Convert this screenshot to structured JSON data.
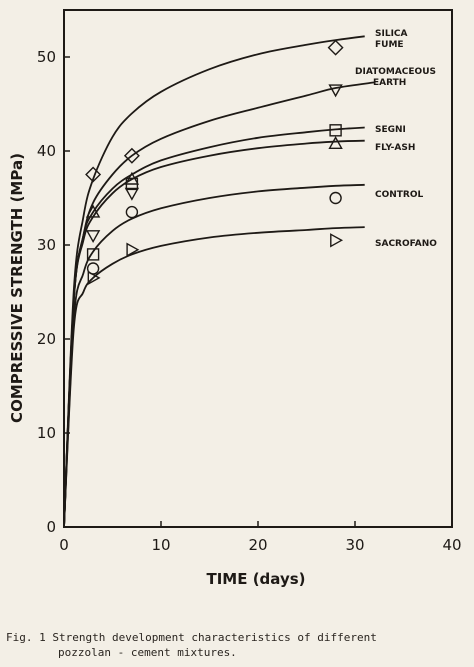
{
  "chart_data": {
    "type": "line",
    "xlabel": "TIME (days)",
    "ylabel": "COMPRESSIVE STRENGTH (MPa)",
    "xlim": [
      0,
      40
    ],
    "ylim": [
      0,
      55
    ],
    "xticks": [
      0,
      10,
      20,
      30,
      40
    ],
    "yticks": [
      0,
      10,
      20,
      30,
      40,
      50
    ],
    "grid": false,
    "series": [
      {
        "name": "SILICA FUME",
        "marker": "diamond",
        "points": [
          [
            3,
            37.5
          ],
          [
            7,
            39.5
          ],
          [
            28,
            51
          ]
        ],
        "curve": [
          [
            0,
            0
          ],
          [
            1,
            25
          ],
          [
            2,
            33
          ],
          [
            3,
            37
          ],
          [
            5,
            41.5
          ],
          [
            7,
            44
          ],
          [
            10,
            46.3
          ],
          [
            15,
            48.7
          ],
          [
            20,
            50.3
          ],
          [
            25,
            51.3
          ],
          [
            28,
            51.8
          ],
          [
            31,
            52.2
          ]
        ]
      },
      {
        "name": "DIATOMACEOUS EARTH",
        "marker": "triangle-down",
        "points": [
          [
            3,
            31
          ],
          [
            7,
            35.5
          ],
          [
            28,
            46.5
          ]
        ],
        "curve": [
          [
            0,
            0
          ],
          [
            1,
            24
          ],
          [
            2,
            31
          ],
          [
            3,
            34.5
          ],
          [
            5,
            37.5
          ],
          [
            7,
            39.5
          ],
          [
            10,
            41.3
          ],
          [
            15,
            43.2
          ],
          [
            20,
            44.6
          ],
          [
            25,
            45.9
          ],
          [
            28,
            46.7
          ],
          [
            32,
            47.3
          ]
        ]
      },
      {
        "name": "SEGNI",
        "marker": "square",
        "points": [
          [
            3,
            29
          ],
          [
            7,
            36.5
          ],
          [
            28,
            42.2
          ]
        ],
        "curve": [
          [
            0,
            0
          ],
          [
            1,
            24
          ],
          [
            2,
            31
          ],
          [
            3,
            33.5
          ],
          [
            5,
            36
          ],
          [
            7,
            37.5
          ],
          [
            10,
            39
          ],
          [
            15,
            40.4
          ],
          [
            20,
            41.4
          ],
          [
            25,
            42
          ],
          [
            28,
            42.3
          ],
          [
            31,
            42.5
          ]
        ]
      },
      {
        "name": "FLY-ASH",
        "marker": "triangle-up",
        "points": [
          [
            3,
            33.5
          ],
          [
            7,
            37
          ],
          [
            28,
            40.8
          ]
        ],
        "curve": [
          [
            0,
            0
          ],
          [
            1,
            24
          ],
          [
            2,
            30.5
          ],
          [
            3,
            33
          ],
          [
            5,
            35.5
          ],
          [
            7,
            37
          ],
          [
            10,
            38.3
          ],
          [
            15,
            39.5
          ],
          [
            20,
            40.3
          ],
          [
            25,
            40.8
          ],
          [
            28,
            41
          ],
          [
            31,
            41.1
          ]
        ]
      },
      {
        "name": "CONTROL",
        "marker": "circle",
        "points": [
          [
            3,
            27.5
          ],
          [
            7,
            33.5
          ],
          [
            28,
            35
          ]
        ],
        "curve": [
          [
            0,
            0
          ],
          [
            1,
            22
          ],
          [
            2,
            27
          ],
          [
            3,
            29.3
          ],
          [
            5,
            31.5
          ],
          [
            7,
            32.8
          ],
          [
            10,
            33.9
          ],
          [
            15,
            35
          ],
          [
            20,
            35.7
          ],
          [
            25,
            36.1
          ],
          [
            28,
            36.3
          ],
          [
            31,
            36.4
          ]
        ]
      },
      {
        "name": "SACROFANO",
        "marker": "triangle-right",
        "points": [
          [
            3,
            26.5
          ],
          [
            7,
            29.5
          ],
          [
            28,
            30.5
          ]
        ],
        "curve": [
          [
            0,
            0
          ],
          [
            1,
            21
          ],
          [
            2,
            25
          ],
          [
            3,
            26.5
          ],
          [
            5,
            28
          ],
          [
            7,
            29
          ],
          [
            10,
            29.9
          ],
          [
            15,
            30.8
          ],
          [
            20,
            31.3
          ],
          [
            25,
            31.6
          ],
          [
            28,
            31.8
          ],
          [
            31,
            31.9
          ]
        ]
      }
    ]
  },
  "labels": {
    "xlabel": "TIME (days)",
    "ylabel": "COMPRESSIVE STRENGTH (MPa)",
    "series": [
      [
        "SILICA",
        "FUME"
      ],
      [
        "DIATOMACEOUS",
        "EARTH"
      ],
      [
        "SEGNI"
      ],
      [
        "FLY-ASH"
      ],
      [
        "CONTROL"
      ],
      [
        "SACROFANO"
      ]
    ]
  },
  "caption": {
    "line1": "Fig. 1 Strength development characteristics of different",
    "line2": "pozzolan   - cement mixtures."
  }
}
